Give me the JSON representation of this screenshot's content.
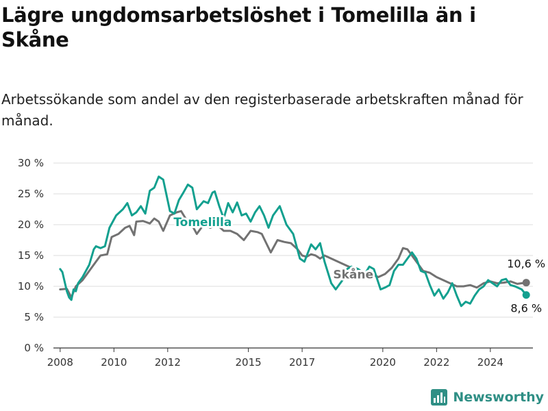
{
  "title": "Lägre ungdomsarbetslöshet i Tomelilla än i Skåne",
  "subtitle": "Arbetssökande som andel av den registerbaserade arbetskraften månad för månad.",
  "brand": "Newsworthy",
  "colors": {
    "tomelilla": "#13a08f",
    "skane": "#727272",
    "grid": "#dddddd",
    "brand": "#2f8f85"
  },
  "chart_data": {
    "type": "line",
    "x_ticks": [
      "2008",
      "2010",
      "2012",
      "2015",
      "2017",
      "2020",
      "2022",
      "2024"
    ],
    "y_ticks": [
      "0 %",
      "5 %",
      "10 %",
      "15 %",
      "20 %",
      "25 %",
      "30 %"
    ],
    "ylim": [
      0,
      30
    ],
    "xlim": [
      "2007-10",
      "2025-08"
    ],
    "grid": true,
    "series": [
      {
        "name": "Tomelilla",
        "label": "Tomelilla",
        "end_label": "8,6 %",
        "points": [
          [
            "2008-01",
            12.8
          ],
          [
            "2008-02",
            12.3
          ],
          [
            "2008-04",
            9.2
          ],
          [
            "2008-05",
            8.2
          ],
          [
            "2008-06",
            7.8
          ],
          [
            "2008-07",
            9.5
          ],
          [
            "2008-08",
            9.2
          ],
          [
            "2008-09",
            10.5
          ],
          [
            "2008-11",
            11.5
          ],
          [
            "2009-02",
            13.5
          ],
          [
            "2009-04",
            16.0
          ],
          [
            "2009-05",
            16.5
          ],
          [
            "2009-07",
            16.2
          ],
          [
            "2009-09",
            16.5
          ],
          [
            "2009-11",
            19.5
          ],
          [
            "2010-02",
            21.5
          ],
          [
            "2010-05",
            22.5
          ],
          [
            "2010-07",
            23.5
          ],
          [
            "2010-09",
            21.5
          ],
          [
            "2010-11",
            22.0
          ],
          [
            "2011-01",
            23.0
          ],
          [
            "2011-03",
            21.8
          ],
          [
            "2011-05",
            25.5
          ],
          [
            "2011-07",
            26.0
          ],
          [
            "2011-09",
            27.8
          ],
          [
            "2011-11",
            27.3
          ],
          [
            "2012-02",
            22.2
          ],
          [
            "2012-04",
            21.8
          ],
          [
            "2012-06",
            24.0
          ],
          [
            "2012-08",
            25.2
          ],
          [
            "2012-10",
            26.5
          ],
          [
            "2012-12",
            26.0
          ],
          [
            "2013-02",
            22.5
          ],
          [
            "2013-05",
            23.8
          ],
          [
            "2013-07",
            23.5
          ],
          [
            "2013-09",
            25.2
          ],
          [
            "2013-10",
            25.4
          ],
          [
            "2013-12",
            23.0
          ],
          [
            "2014-02",
            21.0
          ],
          [
            "2014-04",
            23.5
          ],
          [
            "2014-06",
            22.0
          ],
          [
            "2014-08",
            23.6
          ],
          [
            "2014-10",
            21.5
          ],
          [
            "2014-12",
            21.8
          ],
          [
            "2015-02",
            20.5
          ],
          [
            "2015-04",
            22.0
          ],
          [
            "2015-06",
            23.0
          ],
          [
            "2015-08",
            21.5
          ],
          [
            "2015-10",
            19.5
          ],
          [
            "2015-12",
            21.5
          ],
          [
            "2016-03",
            23.0
          ],
          [
            "2016-06",
            20.0
          ],
          [
            "2016-09",
            18.5
          ],
          [
            "2016-12",
            14.5
          ],
          [
            "2017-02",
            14.0
          ],
          [
            "2017-05",
            16.8
          ],
          [
            "2017-07",
            16.0
          ],
          [
            "2017-09",
            17.0
          ],
          [
            "2017-11",
            14.0
          ],
          [
            "2018-02",
            10.5
          ],
          [
            "2018-04",
            9.5
          ],
          [
            "2018-07",
            11.0
          ],
          [
            "2018-09",
            12.8
          ],
          [
            "2018-11",
            13.2
          ],
          [
            "2019-02",
            12.8
          ],
          [
            "2019-05",
            12.0
          ],
          [
            "2019-07",
            13.2
          ],
          [
            "2019-09",
            12.8
          ],
          [
            "2019-12",
            9.5
          ],
          [
            "2020-02",
            9.8
          ],
          [
            "2020-04",
            10.2
          ],
          [
            "2020-06",
            12.5
          ],
          [
            "2020-08",
            13.5
          ],
          [
            "2020-10",
            13.5
          ],
          [
            "2020-12",
            14.5
          ],
          [
            "2021-02",
            15.5
          ],
          [
            "2021-04",
            14.5
          ],
          [
            "2021-06",
            12.5
          ],
          [
            "2021-08",
            12.2
          ],
          [
            "2021-10",
            10.2
          ],
          [
            "2021-12",
            8.5
          ],
          [
            "2022-02",
            9.5
          ],
          [
            "2022-04",
            8.0
          ],
          [
            "2022-06",
            9.0
          ],
          [
            "2022-08",
            10.5
          ],
          [
            "2022-10",
            8.5
          ],
          [
            "2022-12",
            6.8
          ],
          [
            "2023-02",
            7.5
          ],
          [
            "2023-04",
            7.2
          ],
          [
            "2023-06",
            8.5
          ],
          [
            "2023-08",
            9.5
          ],
          [
            "2023-10",
            10.0
          ],
          [
            "2023-12",
            11.0
          ],
          [
            "2024-02",
            10.5
          ],
          [
            "2024-04",
            10.0
          ],
          [
            "2024-06",
            11.0
          ],
          [
            "2024-08",
            11.2
          ],
          [
            "2024-10",
            10.2
          ],
          [
            "2024-12",
            10.0
          ],
          [
            "2025-03",
            9.5
          ],
          [
            "2025-05",
            8.6
          ]
        ]
      },
      {
        "name": "Skåne",
        "label": "Skåne",
        "end_label": "10,6 %",
        "points": [
          [
            "2008-01",
            9.5
          ],
          [
            "2008-04",
            9.6
          ],
          [
            "2008-06",
            8.2
          ],
          [
            "2008-08",
            10.0
          ],
          [
            "2008-11",
            11.0
          ],
          [
            "2009-02",
            12.5
          ],
          [
            "2009-05",
            14.0
          ],
          [
            "2009-07",
            15.0
          ],
          [
            "2009-10",
            15.2
          ],
          [
            "2009-12",
            18.0
          ],
          [
            "2010-03",
            18.5
          ],
          [
            "2010-06",
            19.5
          ],
          [
            "2010-08",
            19.8
          ],
          [
            "2010-10",
            18.3
          ],
          [
            "2010-11",
            20.5
          ],
          [
            "2011-02",
            20.6
          ],
          [
            "2011-05",
            20.2
          ],
          [
            "2011-07",
            21.0
          ],
          [
            "2011-09",
            20.5
          ],
          [
            "2011-11",
            19.0
          ],
          [
            "2012-02",
            21.5
          ],
          [
            "2012-05",
            22.0
          ],
          [
            "2012-07",
            22.2
          ],
          [
            "2012-09",
            21.0
          ],
          [
            "2012-11",
            20.5
          ],
          [
            "2013-02",
            18.5
          ],
          [
            "2013-05",
            20.0
          ],
          [
            "2013-08",
            19.5
          ],
          [
            "2013-11",
            20.0
          ],
          [
            "2014-02",
            19.0
          ],
          [
            "2014-05",
            19.0
          ],
          [
            "2014-08",
            18.5
          ],
          [
            "2014-11",
            17.5
          ],
          [
            "2015-02",
            19.0
          ],
          [
            "2015-05",
            18.8
          ],
          [
            "2015-07",
            18.5
          ],
          [
            "2015-09",
            17.0
          ],
          [
            "2015-11",
            15.5
          ],
          [
            "2016-02",
            17.5
          ],
          [
            "2016-05",
            17.2
          ],
          [
            "2016-08",
            17.0
          ],
          [
            "2016-11",
            16.0
          ],
          [
            "2017-01",
            15.0
          ],
          [
            "2017-03",
            14.8
          ],
          [
            "2017-05",
            15.2
          ],
          [
            "2017-07",
            15.0
          ],
          [
            "2017-09",
            14.5
          ],
          [
            "2017-11",
            15.0
          ],
          [
            "2018-02",
            14.5
          ],
          [
            "2018-05",
            14.0
          ],
          [
            "2018-08",
            13.5
          ],
          [
            "2018-11",
            13.0
          ],
          [
            "2019-02",
            12.5
          ],
          [
            "2019-05",
            12.0
          ],
          [
            "2019-08",
            12.0
          ],
          [
            "2019-11",
            11.5
          ],
          [
            "2020-02",
            12.0
          ],
          [
            "2020-05",
            13.0
          ],
          [
            "2020-08",
            14.5
          ],
          [
            "2020-10",
            16.2
          ],
          [
            "2020-12",
            16.0
          ],
          [
            "2021-03",
            14.5
          ],
          [
            "2021-05",
            13.5
          ],
          [
            "2021-07",
            12.5
          ],
          [
            "2021-10",
            12.2
          ],
          [
            "2022-01",
            11.5
          ],
          [
            "2022-04",
            11.0
          ],
          [
            "2022-07",
            10.5
          ],
          [
            "2022-10",
            10.0
          ],
          [
            "2023-01",
            10.0
          ],
          [
            "2023-04",
            10.2
          ],
          [
            "2023-07",
            9.8
          ],
          [
            "2023-10",
            10.5
          ],
          [
            "2024-01",
            10.8
          ],
          [
            "2024-04",
            10.5
          ],
          [
            "2024-07",
            10.6
          ],
          [
            "2024-10",
            10.8
          ],
          [
            "2025-01",
            10.4
          ],
          [
            "2025-05",
            10.6
          ]
        ]
      }
    ]
  }
}
